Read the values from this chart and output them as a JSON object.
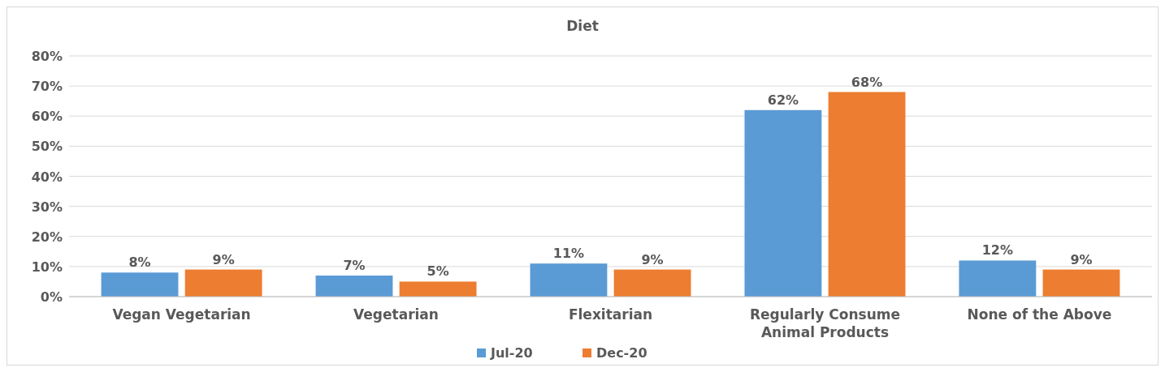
{
  "chart_data": {
    "type": "bar",
    "title": "Diet",
    "categories": [
      "Vegan Vegetarian",
      "Vegetarian",
      "Flexitarian",
      "Regularly Consume Animal Products",
      "None of the Above"
    ],
    "series": [
      {
        "name": "Jul-20",
        "color": "#5b9bd5",
        "values": [
          8,
          7,
          11,
          62,
          12
        ],
        "value_labels": [
          "8%",
          "7%",
          "11%",
          "62%",
          "12%"
        ]
      },
      {
        "name": "Dec-20",
        "color": "#ed7d31",
        "values": [
          9,
          5,
          9,
          68,
          9
        ],
        "value_labels": [
          "9%",
          "5%",
          "9%",
          "68%",
          "9%"
        ]
      }
    ],
    "ylim": [
      0,
      80
    ],
    "yticks": [
      {
        "value": 0,
        "label": "0%"
      },
      {
        "value": 10,
        "label": "10%"
      },
      {
        "value": 20,
        "label": "20%"
      },
      {
        "value": 30,
        "label": "30%"
      },
      {
        "value": 40,
        "label": "40%"
      },
      {
        "value": 50,
        "label": "50%"
      },
      {
        "value": 60,
        "label": "60%"
      },
      {
        "value": 70,
        "label": "70%"
      },
      {
        "value": 80,
        "label": "80%"
      }
    ],
    "grid": "y",
    "legend": "bottom"
  }
}
